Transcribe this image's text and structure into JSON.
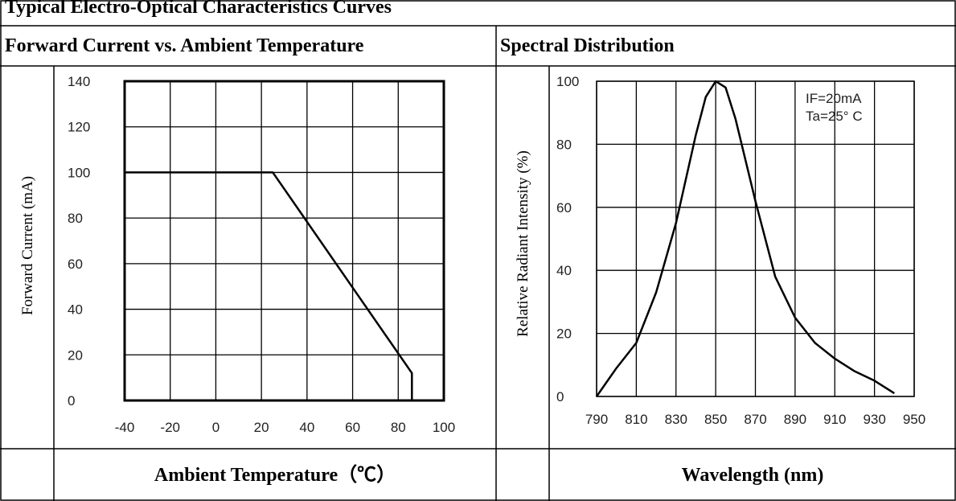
{
  "page": {
    "title": "Typical Electro-Optical Characteristics Curves"
  },
  "chart_data": [
    {
      "type": "line",
      "title": "Forward Current vs. Ambient Temperature",
      "xlabel": "Ambient Temperature（℃）",
      "ylabel": "Forward Current (mA)",
      "x": [
        -40,
        25,
        86,
        86
      ],
      "values": [
        100,
        100,
        12,
        0
      ],
      "color": "#000000",
      "xlim": [
        -40,
        100
      ],
      "xticks": [
        -40,
        -20,
        0,
        20,
        40,
        60,
        80,
        100
      ],
      "ylim": [
        0,
        140
      ],
      "yticks": [
        0,
        20,
        40,
        60,
        80,
        100,
        120,
        140
      ],
      "grid": true
    },
    {
      "type": "line",
      "title": "Spectral Distribution",
      "xlabel": "Wavelength (nm)",
      "ylabel": "Relative Radiant Intensity (%)",
      "annotations": [
        "IF=20mA",
        "Ta=25° C"
      ],
      "x": [
        790,
        800,
        810,
        820,
        830,
        840,
        845,
        850,
        855,
        860,
        870,
        880,
        890,
        900,
        910,
        920,
        930,
        940
      ],
      "values": [
        0,
        9,
        17,
        33,
        55,
        83,
        95,
        100,
        98,
        88,
        62,
        38,
        25,
        17,
        12,
        8,
        5,
        1
      ],
      "color": "#000000",
      "xlim": [
        790,
        950
      ],
      "xticks": [
        790,
        810,
        830,
        850,
        870,
        890,
        910,
        930,
        950
      ],
      "ylim": [
        0,
        100
      ],
      "yticks": [
        0,
        20,
        40,
        60,
        80,
        100
      ],
      "grid": true
    }
  ]
}
